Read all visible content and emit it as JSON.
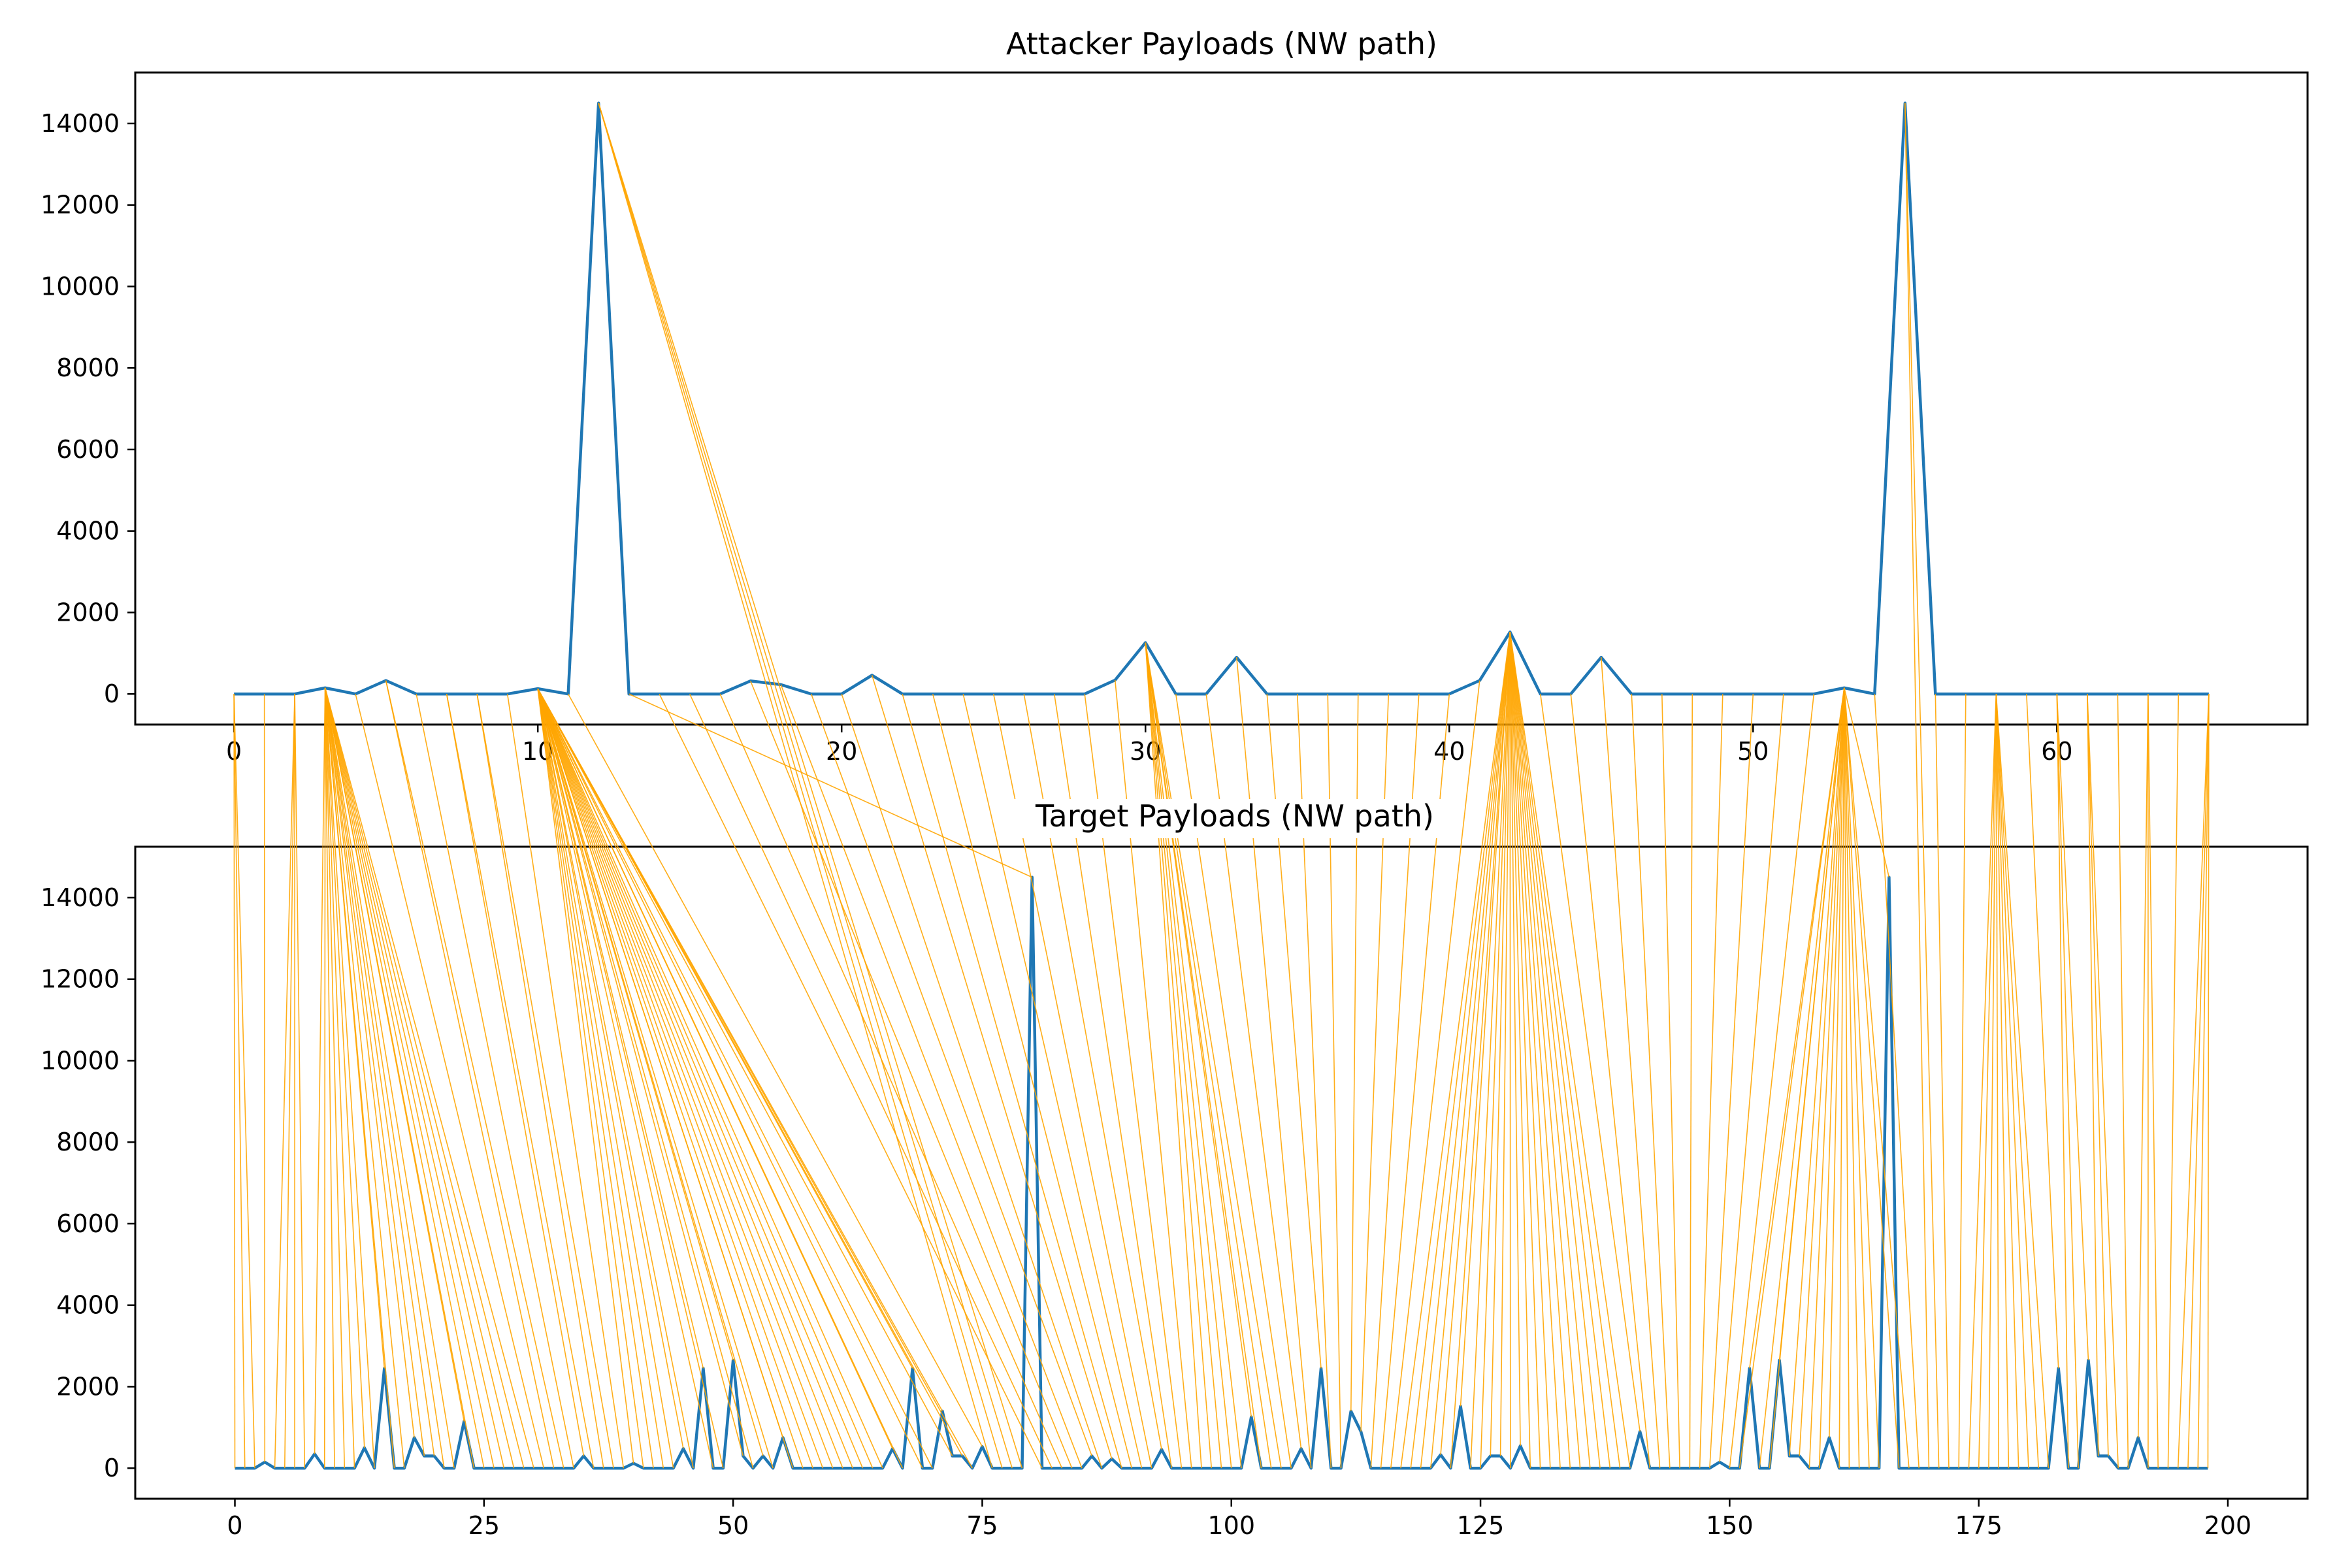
{
  "chart_data": {
    "type": "line",
    "colors": {
      "series": "#1f77b4",
      "connector": "#ffa500",
      "axes": "#000000"
    },
    "charts": [
      {
        "id": "attacker",
        "title": "Attacker Payloads (NW path)",
        "xlabel": "",
        "ylabel": "",
        "xlim": [
          -3.25,
          68.25
        ],
        "ylim": [
          -750,
          15250
        ],
        "xticks": [
          0,
          10,
          20,
          30,
          40,
          50,
          60
        ],
        "yticks": [
          0,
          2000,
          4000,
          6000,
          8000,
          10000,
          12000,
          14000
        ],
        "grid": false,
        "y": [
          0,
          0,
          0,
          150,
          0,
          330,
          0,
          0,
          0,
          0,
          130,
          0,
          14500,
          0,
          0,
          0,
          0,
          320,
          230,
          0,
          0,
          460,
          0,
          0,
          0,
          0,
          0,
          0,
          0,
          340,
          1260,
          0,
          0,
          900,
          0,
          0,
          0,
          0,
          0,
          0,
          0,
          330,
          1520,
          0,
          0,
          900,
          0,
          0,
          0,
          0,
          0,
          0,
          0,
          150,
          0,
          14500,
          0,
          0,
          0,
          0,
          0,
          0,
          0,
          0,
          0,
          0
        ]
      },
      {
        "id": "target",
        "title": "Target Payloads (NW path)",
        "xlabel": "",
        "ylabel": "",
        "xlim": [
          -10,
          208
        ],
        "ylim": [
          -750,
          15250
        ],
        "xticks": [
          0,
          25,
          50,
          75,
          100,
          125,
          150,
          175,
          200
        ],
        "yticks": [
          0,
          2000,
          4000,
          6000,
          8000,
          10000,
          12000,
          14000
        ],
        "grid": false,
        "points": [
          [
            3,
            150
          ],
          [
            8,
            350
          ],
          [
            13,
            500
          ],
          [
            15,
            2450
          ],
          [
            18,
            750
          ],
          [
            19,
            300
          ],
          [
            20,
            300
          ],
          [
            23,
            1150
          ],
          [
            35,
            300
          ],
          [
            40,
            120
          ],
          [
            45,
            480
          ],
          [
            47,
            2450
          ],
          [
            50,
            2650
          ],
          [
            51,
            300
          ],
          [
            53,
            300
          ],
          [
            55,
            750
          ],
          [
            66,
            480
          ],
          [
            68,
            2450
          ],
          [
            71,
            1400
          ],
          [
            72,
            300
          ],
          [
            73,
            300
          ],
          [
            75,
            530
          ],
          [
            80,
            14500
          ],
          [
            86,
            300
          ],
          [
            88,
            230
          ],
          [
            93,
            460
          ],
          [
            102,
            1260
          ],
          [
            107,
            480
          ],
          [
            109,
            2450
          ],
          [
            112,
            1400
          ],
          [
            113,
            900
          ],
          [
            121,
            330
          ],
          [
            123,
            1520
          ],
          [
            126,
            300
          ],
          [
            127,
            300
          ],
          [
            129,
            550
          ],
          [
            141,
            900
          ],
          [
            149,
            150
          ],
          [
            152,
            2450
          ],
          [
            155,
            2650
          ],
          [
            156,
            300
          ],
          [
            157,
            300
          ],
          [
            160,
            750
          ],
          [
            166,
            14500
          ],
          [
            183,
            2450
          ],
          [
            186,
            2650
          ],
          [
            187,
            300
          ],
          [
            188,
            300
          ],
          [
            191,
            750
          ]
        ]
      }
    ],
    "alignment": {
      "type": "connector lines from each Attacker point to the Target points it is aligned to (NW path)",
      "segments": [
        [
          0,
          0,
          2
        ],
        [
          1,
          3,
          3
        ],
        [
          2,
          4,
          7
        ],
        [
          3,
          8,
          30
        ],
        [
          4,
          31,
          31
        ],
        [
          5,
          32,
          33
        ],
        [
          6,
          34,
          34
        ],
        [
          7,
          35,
          36
        ],
        [
          8,
          37,
          38
        ],
        [
          9,
          39,
          39
        ],
        [
          10,
          40,
          74
        ],
        [
          11,
          75,
          75
        ],
        [
          12,
          76,
          79
        ],
        [
          13,
          80,
          80
        ],
        [
          14,
          81,
          81
        ],
        [
          15,
          82,
          82
        ],
        [
          16,
          83,
          83
        ],
        [
          17,
          84,
          84
        ],
        [
          18,
          85,
          85
        ],
        [
          19,
          86,
          86
        ],
        [
          20,
          87,
          87
        ],
        [
          21,
          88,
          88
        ],
        [
          22,
          89,
          89
        ],
        [
          23,
          90,
          90
        ],
        [
          24,
          91,
          91
        ],
        [
          25,
          92,
          92
        ],
        [
          26,
          93,
          93
        ],
        [
          27,
          94,
          94
        ],
        [
          28,
          95,
          95
        ],
        [
          29,
          96,
          96
        ],
        [
          30,
          97,
          105
        ],
        [
          31,
          106,
          106
        ],
        [
          32,
          107,
          107
        ],
        [
          33,
          108,
          108
        ],
        [
          34,
          109,
          109
        ],
        [
          35,
          110,
          110
        ],
        [
          36,
          111,
          111
        ],
        [
          37,
          112,
          112
        ],
        [
          38,
          113,
          113
        ],
        [
          39,
          114,
          114
        ],
        [
          40,
          115,
          115
        ],
        [
          41,
          116,
          116
        ],
        [
          42,
          117,
          140
        ],
        [
          43,
          141,
          141
        ],
        [
          44,
          142,
          142
        ],
        [
          45,
          143,
          143
        ],
        [
          46,
          144,
          144
        ],
        [
          47,
          145,
          145
        ],
        [
          48,
          146,
          146
        ],
        [
          49,
          147,
          147
        ],
        [
          50,
          148,
          148
        ],
        [
          51,
          149,
          149
        ],
        [
          52,
          150,
          150
        ],
        [
          53,
          151,
          168
        ],
        [
          54,
          169,
          169
        ],
        [
          55,
          170,
          171
        ],
        [
          56,
          172,
          172
        ],
        [
          57,
          173,
          173
        ],
        [
          58,
          174,
          182
        ],
        [
          59,
          183,
          183
        ],
        [
          60,
          184,
          186
        ],
        [
          61,
          187,
          189
        ],
        [
          62,
          190,
          190
        ],
        [
          63,
          191,
          193
        ],
        [
          64,
          194,
          194
        ],
        [
          65,
          195,
          198
        ]
      ]
    }
  }
}
